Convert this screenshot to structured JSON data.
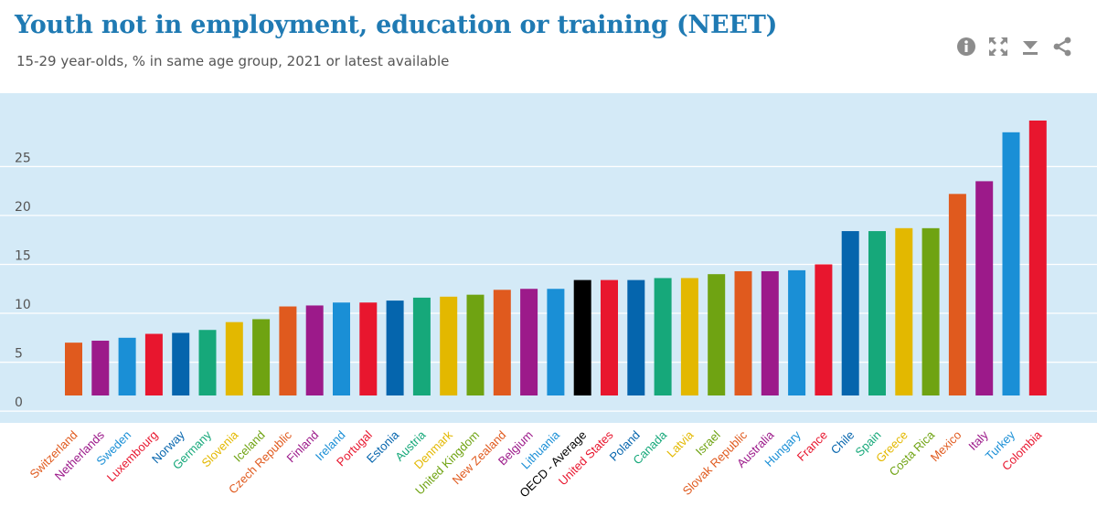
{
  "header": {
    "title": "Youth not in employment, education or training (NEET)",
    "subtitle": "15-29 year-olds, % in same age group, 2021 or latest available"
  },
  "toolbar": {
    "icons": [
      "info-icon",
      "expand-icon",
      "download-icon",
      "share-icon"
    ],
    "icon_color": "#8c8c8c"
  },
  "colors": {
    "plot_background": "#d4eaf7",
    "gridline": "#ffffff",
    "tick_label": "#555555"
  },
  "chart_data": {
    "type": "bar",
    "title": "Youth not in employment, education or training (NEET)",
    "subtitle": "15-29 year-olds, % in same age group, 2021 or latest available",
    "xlabel": "",
    "ylabel": "",
    "ylim": [
      -1.2,
      32.5
    ],
    "yticks": [
      0,
      5,
      10,
      15,
      20,
      25
    ],
    "grid": true,
    "legend": "none",
    "categories": [
      "Switzerland",
      "Netherlands",
      "Sweden",
      "Luxembourg",
      "Norway",
      "Germany",
      "Slovenia",
      "Iceland",
      "Czech Republic",
      "Finland",
      "Ireland",
      "Portugal",
      "Estonia",
      "Austria",
      "Denmark",
      "United Kingdom",
      "New Zealand",
      "Belgium",
      "Lithuania",
      "OECD - Average",
      "United States",
      "Poland",
      "Canada",
      "Latvia",
      "Israel",
      "Slovak Republic",
      "Australia",
      "Hungary",
      "France",
      "Chile",
      "Spain",
      "Greece",
      "Costa Rica",
      "Mexico",
      "Italy",
      "Turkey",
      "Colombia"
    ],
    "values": [
      7.0,
      7.2,
      7.5,
      7.9,
      8.0,
      8.3,
      9.1,
      9.4,
      10.7,
      10.8,
      11.1,
      11.1,
      11.3,
      11.6,
      11.7,
      11.9,
      12.4,
      12.5,
      12.5,
      13.4,
      13.4,
      13.4,
      13.6,
      13.6,
      14.0,
      14.3,
      14.3,
      14.4,
      15.0,
      18.4,
      18.4,
      18.7,
      18.7,
      22.2,
      23.5,
      28.5,
      29.7
    ],
    "colors": [
      "#e05a1e",
      "#9c1a8a",
      "#1a8fd6",
      "#e8162e",
      "#0565ad",
      "#16a87a",
      "#e3b800",
      "#6fa312",
      "#e05a1e",
      "#9c1a8a",
      "#1a8fd6",
      "#e8162e",
      "#0565ad",
      "#16a87a",
      "#e3b800",
      "#6fa312",
      "#e05a1e",
      "#9c1a8a",
      "#1a8fd6",
      "#000000",
      "#e8162e",
      "#0565ad",
      "#16a87a",
      "#e3b800",
      "#6fa312",
      "#e05a1e",
      "#9c1a8a",
      "#1a8fd6",
      "#e8162e",
      "#0565ad",
      "#16a87a",
      "#e3b800",
      "#6fa312",
      "#e05a1e",
      "#9c1a8a",
      "#1a8fd6",
      "#e8162e"
    ]
  }
}
